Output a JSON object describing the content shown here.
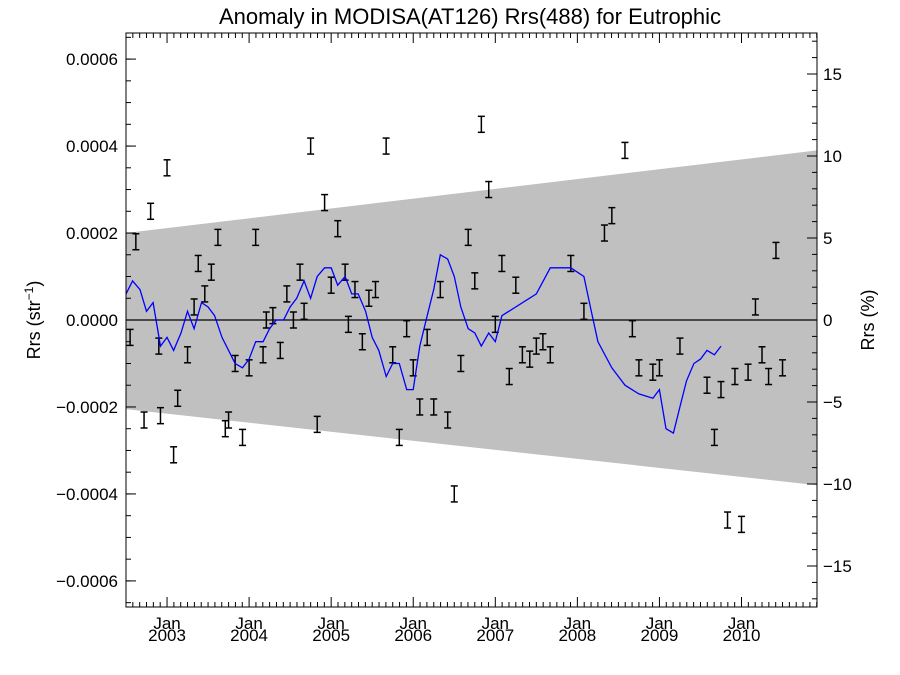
{
  "chart_data": {
    "type": "line",
    "title": "Anomaly in MODISA(AT126) Rrs(488) for Eutrophic",
    "ylabel_left": {
      "main": "Rrs (str",
      "sup": "−1",
      "close": ")"
    },
    "ylabel_right": "Rrs (%)",
    "ylim": [
      -0.00066,
      0.00066
    ],
    "y2lim": [
      -17.5,
      17.5
    ],
    "xlim": [
      2002.5,
      2010.92
    ],
    "grid": false,
    "x_ticks": [
      {
        "x": 2003.0,
        "month": "Jan",
        "year": "2003"
      },
      {
        "x": 2004.0,
        "month": "Jan",
        "year": "2004"
      },
      {
        "x": 2005.0,
        "month": "Jan",
        "year": "2005"
      },
      {
        "x": 2006.0,
        "month": "Jan",
        "year": "2006"
      },
      {
        "x": 2007.0,
        "month": "Jan",
        "year": "2007"
      },
      {
        "x": 2008.0,
        "month": "Jan",
        "year": "2008"
      },
      {
        "x": 2009.0,
        "month": "Jan",
        "year": "2009"
      },
      {
        "x": 2010.0,
        "month": "Jan",
        "year": "2010"
      }
    ],
    "y_ticks_left": [
      {
        "v": 0.0006,
        "label": "0.0006"
      },
      {
        "v": 0.0004,
        "label": "0.0004"
      },
      {
        "v": 0.0002,
        "label": "0.0002"
      },
      {
        "v": 0.0,
        "label": "0.0000"
      },
      {
        "v": -0.0002,
        "label": "−0.0002"
      },
      {
        "v": -0.0004,
        "label": "−0.0004"
      },
      {
        "v": -0.0006,
        "label": "−0.0006"
      }
    ],
    "y_ticks_right": [
      {
        "v": 15,
        "label": "15"
      },
      {
        "v": 10,
        "label": "10"
      },
      {
        "v": 5,
        "label": "5"
      },
      {
        "v": 0,
        "label": "0"
      },
      {
        "v": -5,
        "label": "−5"
      },
      {
        "v": -10,
        "label": "−10"
      },
      {
        "v": -15,
        "label": "−15"
      }
    ],
    "band": {
      "color": "#c0c0c0",
      "upper": [
        [
          2002.5,
          0.0002
        ],
        [
          2010.92,
          0.00039
        ]
      ],
      "lower": [
        [
          2002.5,
          -0.000205
        ],
        [
          2010.92,
          -0.00038
        ]
      ]
    },
    "zero_line": 0.0,
    "series": [
      {
        "type": "line",
        "color": "#0000ff",
        "points": [
          [
            2002.5,
            6e-05
          ],
          [
            2002.58,
            9e-05
          ],
          [
            2002.67,
            7e-05
          ],
          [
            2002.75,
            2e-05
          ],
          [
            2002.83,
            4e-05
          ],
          [
            2002.92,
            -6e-05
          ],
          [
            2003.0,
            -4e-05
          ],
          [
            2003.08,
            -7e-05
          ],
          [
            2003.17,
            -3e-05
          ],
          [
            2003.25,
            2e-05
          ],
          [
            2003.33,
            -2e-05
          ],
          [
            2003.42,
            4e-05
          ],
          [
            2003.5,
            3e-05
          ],
          [
            2003.58,
            1e-05
          ],
          [
            2003.67,
            -4e-05
          ],
          [
            2003.75,
            -7e-05
          ],
          [
            2003.83,
            -0.0001
          ],
          [
            2003.92,
            -0.00011
          ],
          [
            2004.0,
            -9e-05
          ],
          [
            2004.08,
            -5e-05
          ],
          [
            2004.17,
            -5e-05
          ],
          [
            2004.25,
            -2e-05
          ],
          [
            2004.33,
            0.0
          ],
          [
            2004.42,
            0.0
          ],
          [
            2004.5,
            3e-05
          ],
          [
            2004.58,
            5e-05
          ],
          [
            2004.67,
            9e-05
          ],
          [
            2004.75,
            5e-05
          ],
          [
            2004.83,
            0.0001
          ],
          [
            2004.92,
            0.00012
          ],
          [
            2005.0,
            0.00012
          ],
          [
            2005.08,
            8e-05
          ],
          [
            2005.17,
            0.0001
          ],
          [
            2005.25,
            6e-05
          ],
          [
            2005.33,
            6e-05
          ],
          [
            2005.42,
            2e-05
          ],
          [
            2005.5,
            -4e-05
          ],
          [
            2005.58,
            -7e-05
          ],
          [
            2005.67,
            -0.00013
          ],
          [
            2005.75,
            -0.0001
          ],
          [
            2005.83,
            -0.0001
          ],
          [
            2005.92,
            -0.00016
          ],
          [
            2006.0,
            -0.00016
          ],
          [
            2006.08,
            -6e-05
          ],
          [
            2006.17,
            1e-05
          ],
          [
            2006.25,
            7e-05
          ],
          [
            2006.33,
            0.00015
          ],
          [
            2006.42,
            0.00014
          ],
          [
            2006.5,
            0.0001
          ],
          [
            2006.58,
            3e-05
          ],
          [
            2006.67,
            -2e-05
          ],
          [
            2006.75,
            -3e-05
          ],
          [
            2006.83,
            -6e-05
          ],
          [
            2006.92,
            -3e-05
          ],
          [
            2007.0,
            -5e-05
          ],
          [
            2007.08,
            1e-05
          ],
          [
            2007.5,
            6e-05
          ],
          [
            2007.67,
            0.00012
          ],
          [
            2007.92,
            0.00012
          ],
          [
            2008.08,
            0.0001
          ],
          [
            2008.17,
            2e-05
          ],
          [
            2008.25,
            -5e-05
          ],
          [
            2008.42,
            -0.00011
          ],
          [
            2008.58,
            -0.00015
          ],
          [
            2008.75,
            -0.00017
          ],
          [
            2008.92,
            -0.00018
          ],
          [
            2009.0,
            -0.00016
          ],
          [
            2009.08,
            -0.00025
          ],
          [
            2009.17,
            -0.00026
          ],
          [
            2009.25,
            -0.0002
          ],
          [
            2009.33,
            -0.00014
          ],
          [
            2009.42,
            -0.0001
          ],
          [
            2009.5,
            -9e-05
          ],
          [
            2009.58,
            -7e-05
          ],
          [
            2009.67,
            -8e-05
          ],
          [
            2009.75,
            -6e-05
          ]
        ]
      },
      {
        "type": "errorbar",
        "color": "#000000",
        "points": [
          [
            2002.55,
            -4e-05
          ],
          [
            2002.62,
            0.00018
          ],
          [
            2002.72,
            -0.00023
          ],
          [
            2002.8,
            0.00025
          ],
          [
            2002.9,
            -6e-05
          ],
          [
            2002.92,
            -0.00022
          ],
          [
            2003.0,
            0.00035
          ],
          [
            2003.08,
            -0.00031
          ],
          [
            2003.13,
            -0.00018
          ],
          [
            2003.25,
            -8e-05
          ],
          [
            2003.33,
            3e-05
          ],
          [
            2003.38,
            0.00013
          ],
          [
            2003.46,
            6e-05
          ],
          [
            2003.54,
            0.00011
          ],
          [
            2003.62,
            0.00019
          ],
          [
            2003.71,
            -0.00025
          ],
          [
            2003.75,
            -0.00023
          ],
          [
            2003.83,
            -0.0001
          ],
          [
            2003.92,
            -0.00027
          ],
          [
            2004.0,
            -0.00011
          ],
          [
            2004.08,
            0.00019
          ],
          [
            2004.17,
            -8e-05
          ],
          [
            2004.21,
            0.0
          ],
          [
            2004.29,
            1e-05
          ],
          [
            2004.38,
            -7e-05
          ],
          [
            2004.46,
            6e-05
          ],
          [
            2004.54,
            0.0
          ],
          [
            2004.62,
            0.00011
          ],
          [
            2004.67,
            2e-05
          ],
          [
            2004.75,
            0.0004
          ],
          [
            2004.83,
            -0.00024
          ],
          [
            2004.92,
            0.00027
          ],
          [
            2005.0,
            8e-05
          ],
          [
            2005.08,
            0.00021
          ],
          [
            2005.17,
            0.00011
          ],
          [
            2005.21,
            -1e-05
          ],
          [
            2005.29,
            7e-05
          ],
          [
            2005.38,
            -5e-05
          ],
          [
            2005.46,
            5e-05
          ],
          [
            2005.54,
            7e-05
          ],
          [
            2005.67,
            0.0004
          ],
          [
            2005.75,
            -8e-05
          ],
          [
            2005.83,
            -0.00027
          ],
          [
            2005.92,
            -2e-05
          ],
          [
            2006.0,
            -0.00011
          ],
          [
            2006.08,
            -0.0002
          ],
          [
            2006.17,
            -4e-05
          ],
          [
            2006.25,
            -0.0002
          ],
          [
            2006.33,
            7e-05
          ],
          [
            2006.42,
            -0.00023
          ],
          [
            2006.5,
            -0.0004
          ],
          [
            2006.58,
            -0.0001
          ],
          [
            2006.67,
            0.00019
          ],
          [
            2006.75,
            9e-05
          ],
          [
            2006.83,
            0.00045
          ],
          [
            2006.92,
            0.0003
          ],
          [
            2007.0,
            -1e-05
          ],
          [
            2007.08,
            0.00013
          ],
          [
            2007.17,
            -0.00013
          ],
          [
            2007.25,
            8e-05
          ],
          [
            2007.33,
            -8e-05
          ],
          [
            2007.42,
            -9e-05
          ],
          [
            2007.5,
            -6e-05
          ],
          [
            2007.58,
            -5e-05
          ],
          [
            2007.67,
            -8e-05
          ],
          [
            2007.92,
            0.00013
          ],
          [
            2008.08,
            2e-05
          ],
          [
            2008.33,
            0.0002
          ],
          [
            2008.42,
            0.00024
          ],
          [
            2008.58,
            0.00039
          ],
          [
            2008.67,
            -2e-05
          ],
          [
            2008.75,
            -0.00011
          ],
          [
            2008.92,
            -0.00012
          ],
          [
            2009.0,
            -0.00011
          ],
          [
            2009.25,
            -6e-05
          ],
          [
            2009.58,
            -0.00015
          ],
          [
            2009.67,
            -0.00027
          ],
          [
            2009.75,
            -0.00016
          ],
          [
            2009.83,
            -0.00046
          ],
          [
            2009.92,
            -0.00013
          ],
          [
            2010.0,
            -0.00047
          ],
          [
            2010.08,
            -0.00012
          ],
          [
            2010.17,
            3e-05
          ],
          [
            2010.25,
            -8e-05
          ],
          [
            2010.33,
            -0.00013
          ],
          [
            2010.42,
            0.00016
          ],
          [
            2010.5,
            -0.00011
          ]
        ]
      }
    ]
  }
}
